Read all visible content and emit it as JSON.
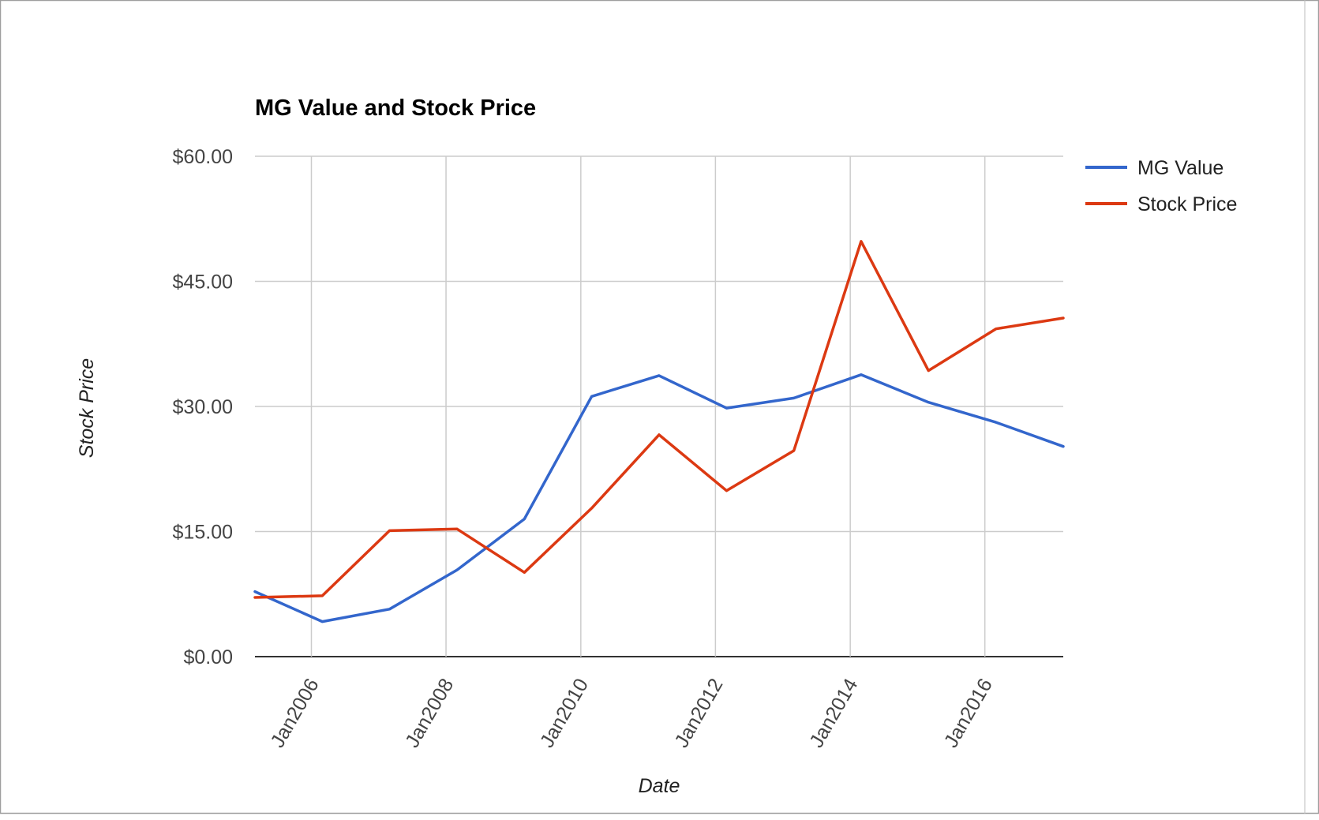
{
  "chart_data": {
    "type": "line",
    "title": "MG Value and Stock Price",
    "xlabel": "Date",
    "ylabel": "Stock Price",
    "x_ticks": [
      "Jan2006",
      "Jan2008",
      "Jan2010",
      "Jan2012",
      "Jan2014",
      "Jan2016"
    ],
    "y_ticks": [
      "$0.00",
      "$15.00",
      "$30.00",
      "$45.00",
      "$60.00"
    ],
    "ylim": [
      0,
      60
    ],
    "xlim": [
      "2005-03-01",
      "2017-03-01"
    ],
    "grid": true,
    "legend_position": "right",
    "series": [
      {
        "name": "MG Value",
        "color": "#3366cc",
        "points": [
          {
            "x": "2005-03-01",
            "y": 7.8
          },
          {
            "x": "2006-03-01",
            "y": 4.2
          },
          {
            "x": "2007-03-01",
            "y": 5.7
          },
          {
            "x": "2008-03-01",
            "y": 10.4
          },
          {
            "x": "2009-03-01",
            "y": 16.5
          },
          {
            "x": "2010-03-01",
            "y": 31.2
          },
          {
            "x": "2011-03-01",
            "y": 33.7
          },
          {
            "x": "2012-03-01",
            "y": 29.8
          },
          {
            "x": "2013-03-01",
            "y": 31.0
          },
          {
            "x": "2014-03-01",
            "y": 33.8
          },
          {
            "x": "2015-03-01",
            "y": 30.5
          },
          {
            "x": "2016-03-01",
            "y": 28.1
          },
          {
            "x": "2017-03-01",
            "y": 25.2
          }
        ]
      },
      {
        "name": "Stock Price",
        "color": "#dc3912",
        "points": [
          {
            "x": "2005-03-01",
            "y": 7.1
          },
          {
            "x": "2006-03-01",
            "y": 7.3
          },
          {
            "x": "2007-03-01",
            "y": 15.1
          },
          {
            "x": "2008-03-01",
            "y": 15.3
          },
          {
            "x": "2009-03-01",
            "y": 10.1
          },
          {
            "x": "2010-03-01",
            "y": 17.8
          },
          {
            "x": "2011-03-01",
            "y": 26.6
          },
          {
            "x": "2012-03-01",
            "y": 19.9
          },
          {
            "x": "2013-03-01",
            "y": 24.7
          },
          {
            "x": "2014-03-01",
            "y": 49.8
          },
          {
            "x": "2015-03-01",
            "y": 34.3
          },
          {
            "x": "2016-03-01",
            "y": 39.3
          },
          {
            "x": "2017-03-01",
            "y": 40.6
          }
        ]
      }
    ]
  }
}
